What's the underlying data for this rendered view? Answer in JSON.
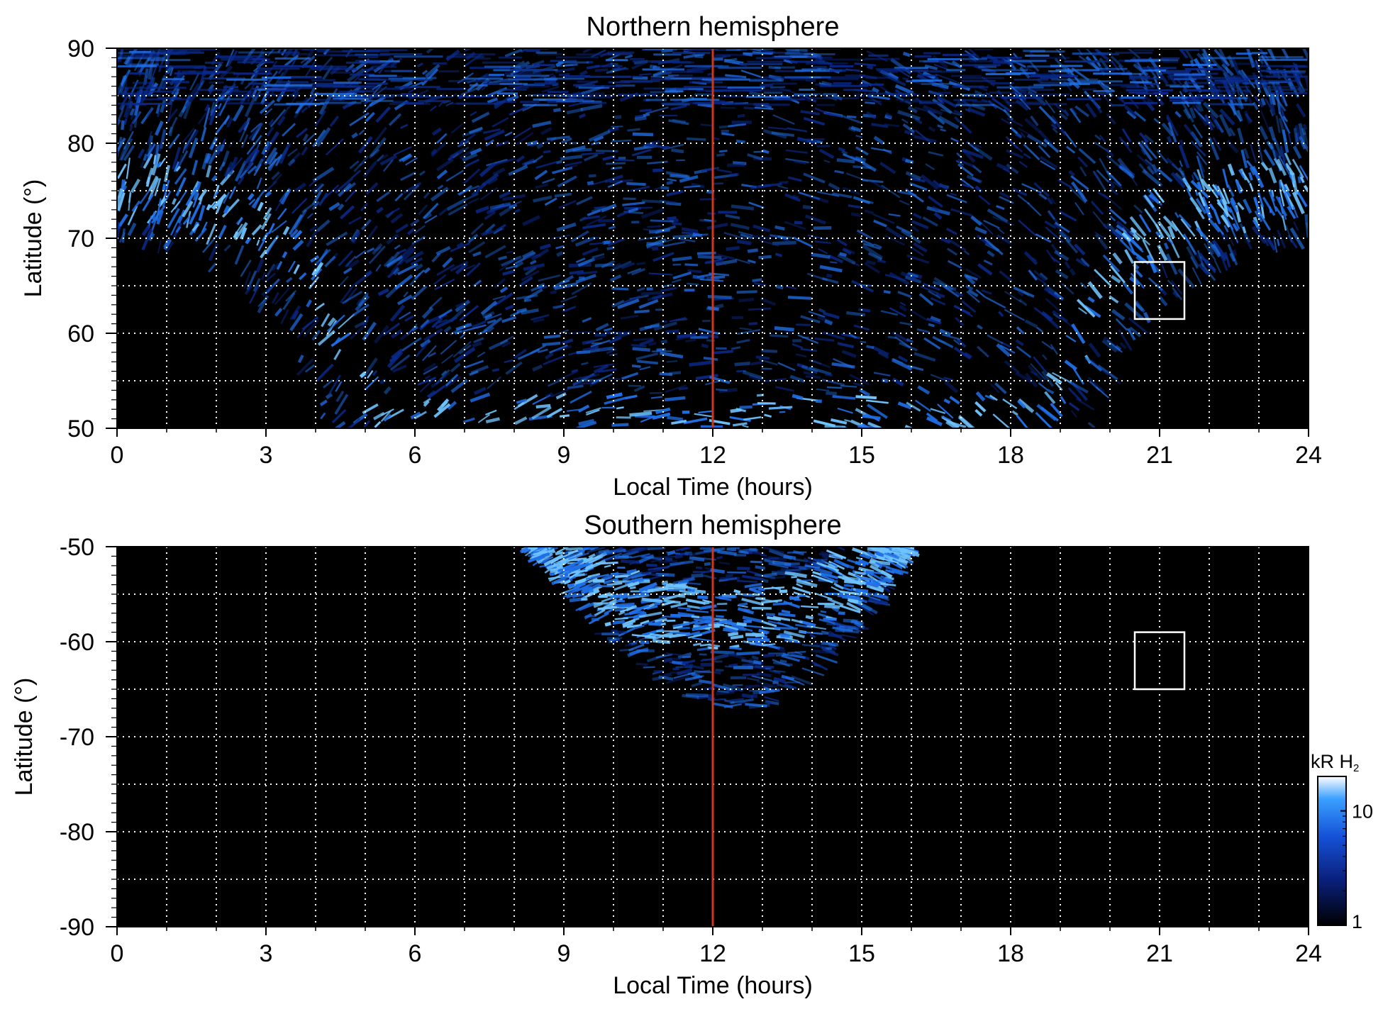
{
  "colors": {
    "background": "#000000",
    "grid": "#ffffff",
    "noon_line": "#d0361e",
    "emission_dim": "#0a2a8c",
    "emission_mid": "#1f6fe8",
    "emission_bright": "#6fc4ff"
  },
  "chart_data": [
    {
      "type": "heatmap",
      "title": "Northern hemisphere",
      "xlabel": "Local Time (hours)",
      "ylabel": "Latitude (°)",
      "xlim": [
        0,
        24
      ],
      "ylim": [
        50,
        90
      ],
      "x_ticks": [
        "0",
        "3",
        "6",
        "9",
        "12",
        "15",
        "18",
        "21",
        "24"
      ],
      "y_ticks": [
        "50",
        "60",
        "70",
        "80",
        "90"
      ],
      "x_grid_step": 1,
      "y_grid_step": 5,
      "grid": "dotted",
      "vertical_line_x": 12,
      "marker_box": {
        "x": [
          20.5,
          21.5
        ],
        "y": [
          61.5,
          67.5
        ]
      },
      "coverage_boundary": [
        [
          0,
          69.8
        ],
        [
          0.5,
          69.5
        ],
        [
          1,
          68.8
        ],
        [
          1.5,
          67.8
        ],
        [
          2,
          66.4
        ],
        [
          2.5,
          64.6
        ],
        [
          3,
          62.4
        ],
        [
          3.5,
          59.2
        ],
        [
          4,
          53
        ],
        [
          4.1,
          50
        ],
        [
          19.9,
          50
        ],
        [
          20,
          53
        ],
        [
          20.5,
          59.2
        ],
        [
          21,
          62.4
        ],
        [
          21.5,
          64.6
        ],
        [
          22,
          66.4
        ],
        [
          22.5,
          67.8
        ],
        [
          23,
          68.8
        ],
        [
          23.5,
          69.5
        ],
        [
          24,
          69.8
        ]
      ],
      "auroral_oval": [
        [
          0,
          75
        ],
        [
          1,
          74.7
        ],
        [
          2,
          73.5
        ],
        [
          3,
          71.5
        ],
        [
          3.5,
          69
        ],
        [
          4,
          65
        ],
        [
          4.5,
          60
        ],
        [
          5,
          55
        ],
        [
          5.2,
          50
        ],
        [
          18.8,
          50
        ],
        [
          19,
          55
        ],
        [
          19.5,
          60
        ],
        [
          20,
          65
        ],
        [
          20.5,
          69
        ],
        [
          21,
          71.5
        ],
        [
          22,
          73.5
        ],
        [
          23,
          74.7
        ],
        [
          24,
          75
        ]
      ]
    },
    {
      "type": "heatmap",
      "title": "Southern hemisphere",
      "xlabel": "Local Time (hours)",
      "ylabel": "Latitude (°)",
      "xlim": [
        0,
        24
      ],
      "ylim": [
        -90,
        -50
      ],
      "x_ticks": [
        "0",
        "3",
        "6",
        "9",
        "12",
        "15",
        "18",
        "21",
        "24"
      ],
      "y_ticks": [
        "-90",
        "-80",
        "-70",
        "-60",
        "-50"
      ],
      "x_grid_step": 1,
      "y_grid_step": 5,
      "grid": "dotted",
      "vertical_line_x": 12,
      "marker_box": {
        "x": [
          20.5,
          21.5
        ],
        "y": [
          -65,
          -59
        ]
      },
      "coverage_boundary": [
        [
          8.3,
          -50
        ],
        [
          8.8,
          -53
        ],
        [
          9.5,
          -57.5
        ],
        [
          10.2,
          -61
        ],
        [
          11,
          -64.5
        ],
        [
          11.8,
          -66.5
        ],
        [
          12.5,
          -67.3
        ],
        [
          13.2,
          -66.5
        ],
        [
          14,
          -63.5
        ],
        [
          14.8,
          -59.5
        ],
        [
          15.5,
          -55
        ],
        [
          16,
          -50
        ]
      ],
      "auroral_oval": [
        [
          8.6,
          -50
        ],
        [
          9.6,
          -54
        ],
        [
          10.6,
          -56.5
        ],
        [
          11.6,
          -57.5
        ],
        [
          12.6,
          -57.5
        ],
        [
          13.6,
          -56.5
        ],
        [
          14.6,
          -54
        ],
        [
          15.6,
          -50
        ]
      ]
    }
  ],
  "colorbar": {
    "label_main": "kR H",
    "label_sub": "2",
    "ticks": [
      "1",
      "10"
    ],
    "tick_values": [
      1,
      10
    ],
    "range": [
      1,
      20
    ],
    "scale": "log",
    "colors": [
      "#000000",
      "#0a1f7a",
      "#1552d8",
      "#3aa0ff",
      "#ffffff"
    ]
  }
}
